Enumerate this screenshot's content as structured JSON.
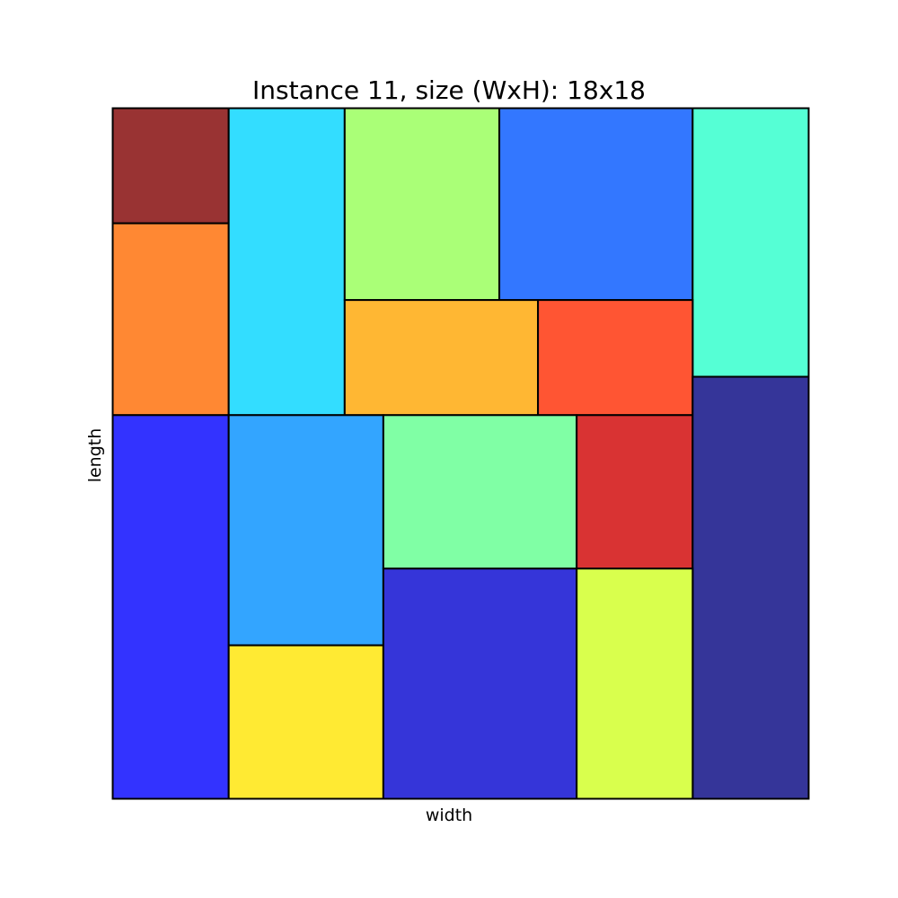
{
  "title": "Instance 11, size (WxH): 18x18",
  "xlabel": "width",
  "ylabel": "length",
  "sheet": {
    "width": 18,
    "height": 18
  },
  "pieces": [
    {
      "id": "piece-1",
      "x": 0,
      "y": 15,
      "w": 3,
      "h": 3,
      "color": "#993333"
    },
    {
      "id": "piece-2",
      "x": 0,
      "y": 10,
      "w": 3,
      "h": 5,
      "color": "#ff8833"
    },
    {
      "id": "piece-3",
      "x": 3,
      "y": 10,
      "w": 3,
      "h": 8,
      "color": "#33ddff"
    },
    {
      "id": "piece-4",
      "x": 6,
      "y": 13,
      "w": 4,
      "h": 5,
      "color": "#aaff77"
    },
    {
      "id": "piece-5",
      "x": 10,
      "y": 13,
      "w": 5,
      "h": 5,
      "color": "#3377ff"
    },
    {
      "id": "piece-6",
      "x": 15,
      "y": 11,
      "w": 3,
      "h": 7,
      "color": "#55ffd5"
    },
    {
      "id": "piece-7",
      "x": 6,
      "y": 10,
      "w": 5,
      "h": 3,
      "color": "#ffb733"
    },
    {
      "id": "piece-8",
      "x": 11,
      "y": 10,
      "w": 4,
      "h": 3,
      "color": "#ff5533"
    },
    {
      "id": "piece-9",
      "x": 0,
      "y": 0,
      "w": 3,
      "h": 10,
      "color": "#3333ff"
    },
    {
      "id": "piece-10",
      "x": 3,
      "y": 4,
      "w": 4,
      "h": 6,
      "color": "#33a5ff"
    },
    {
      "id": "piece-11",
      "x": 7,
      "y": 6,
      "w": 5,
      "h": 4,
      "color": "#80ffa5"
    },
    {
      "id": "piece-12",
      "x": 12,
      "y": 6,
      "w": 3,
      "h": 4,
      "color": "#d93333"
    },
    {
      "id": "piece-13",
      "x": 15,
      "y": 0,
      "w": 3,
      "h": 11,
      "color": "#353599"
    },
    {
      "id": "piece-14",
      "x": 3,
      "y": 0,
      "w": 4,
      "h": 4,
      "color": "#ffea33"
    },
    {
      "id": "piece-15",
      "x": 7,
      "y": 0,
      "w": 5,
      "h": 6,
      "color": "#3535d9"
    },
    {
      "id": "piece-16",
      "x": 12,
      "y": 0,
      "w": 3,
      "h": 6,
      "color": "#d9ff4d"
    }
  ]
}
